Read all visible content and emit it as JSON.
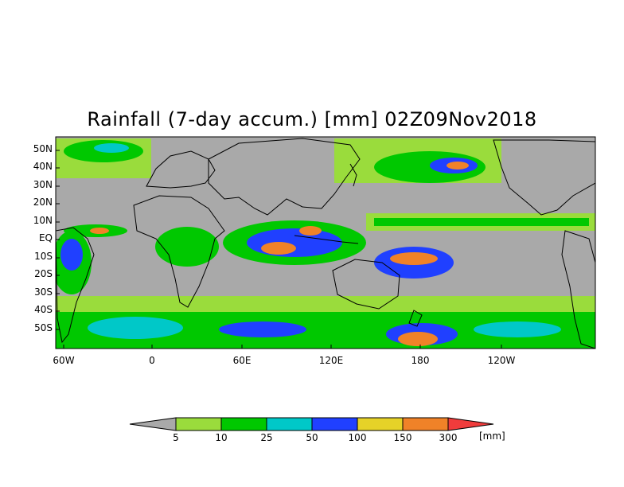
{
  "title": "Rainfall (7-day accum.) [mm] 02Z09Nov2018",
  "lat_labels": [
    "50N",
    "40N",
    "30N",
    "20N",
    "10N",
    "EQ",
    "10S",
    "20S",
    "30S",
    "40S",
    "50S"
  ],
  "lon_labels": [
    "60W",
    "0",
    "60E",
    "120E",
    "180",
    "120W"
  ],
  "colorbar": {
    "labels": [
      "5",
      "10",
      "25",
      "50",
      "100",
      "150",
      "300"
    ],
    "units": "[mm]",
    "colors": [
      "#a9a9a9",
      "#9adc3c",
      "#00c800",
      "#00c8c8",
      "#2040ff",
      "#e6d228",
      "#f08228",
      "#f03c3c"
    ]
  },
  "colors": {
    "land_bg": "#a9a9a9",
    "light_rain": "#9adc3c",
    "moderate_rain": "#00c800",
    "cyan_rain": "#00c8c8",
    "heavy_rain": "#2040ff",
    "very_heavy": "#e6d228",
    "extreme": "#f08228"
  }
}
